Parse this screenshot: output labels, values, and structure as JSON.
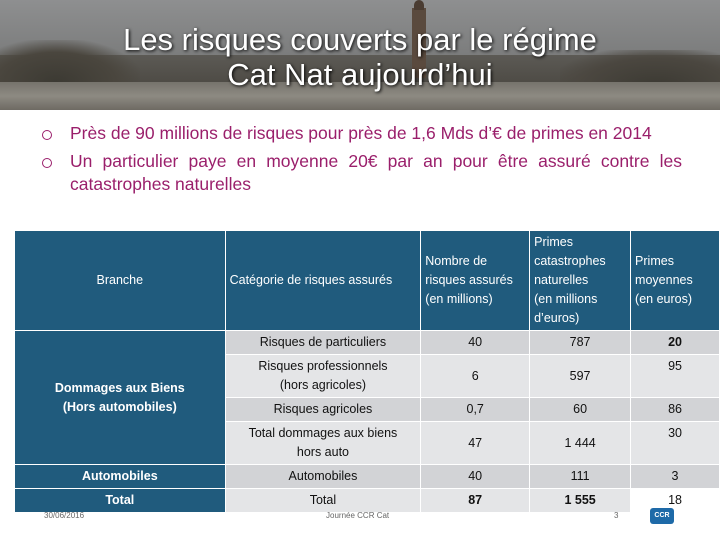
{
  "slide": {
    "title_line1": "Les risques couverts par le régime",
    "title_line2": "Cat Nat aujourd’hui"
  },
  "bullets": [
    "Près de 90 millions de risques pour près de 1,6 Mds d’€ de primes en 2014",
    "Un particulier paye en moyenne 20€ par an pour être assuré contre les catastrophes naturelles"
  ],
  "table": {
    "headers": {
      "branche": "Branche",
      "categorie": "Catégorie de risques assurés",
      "nombre_l1": "Nombre de",
      "nombre_l2": "risques assurés",
      "nombre_l3": "(en millions)",
      "primes_l1": "Primes",
      "primes_l2": "catastrophes",
      "primes_l3": "naturelles",
      "primes_l4": "(en millions",
      "primes_l5": "d’euros)",
      "moy_l1": "Primes",
      "moy_l2": "moyennes",
      "moy_l3": "(en euros)"
    },
    "group1": {
      "branch_l1": "Dommages aux Biens",
      "branch_l2": "(Hors automobiles)"
    },
    "rows": [
      {
        "cat_l1": "Risques de particuliers",
        "cat_l2": "",
        "nombre": "40",
        "primes": "787",
        "moyenne": "20"
      },
      {
        "cat_l1": "Risques professionnels",
        "cat_l2": "(hors agricoles)",
        "nombre": "6",
        "primes": "597",
        "moyenne": "95"
      },
      {
        "cat_l1": "Risques agricoles",
        "cat_l2": "",
        "nombre": "0,7",
        "primes": "60",
        "moyenne": "86"
      },
      {
        "cat_l1": "Total dommages aux biens",
        "cat_l2": "hors auto",
        "nombre": "47",
        "primes": "1 444",
        "moyenne": "30"
      }
    ],
    "auto": {
      "branch": "Automobiles",
      "cat": "Automobiles",
      "nombre": "40",
      "primes": "111",
      "moyenne": "3"
    },
    "total": {
      "branch": "Total",
      "cat": "Total",
      "nombre": "87",
      "primes": "1 555",
      "moyenne": "18"
    }
  },
  "footer": {
    "date": "30/06/2016",
    "event": "Journée CCR Cat",
    "page": "3",
    "logo": "CCR"
  },
  "colors": {
    "header_blue": "#205b7d",
    "bullet_text": "#9a1f6b"
  }
}
